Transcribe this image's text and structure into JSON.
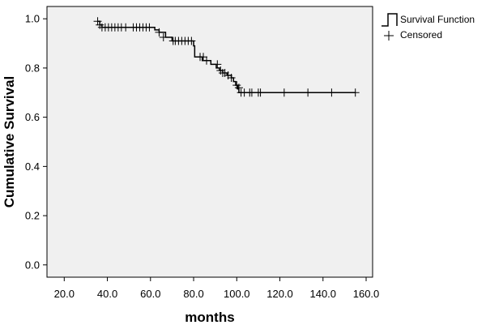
{
  "chart_data": {
    "type": "line",
    "subtype": "kaplan-meier-survival",
    "title": "",
    "xlabel": "months",
    "ylabel": "Cumulative Survival",
    "xlim": [
      12.0,
      163.0
    ],
    "ylim": [
      -0.05,
      1.05
    ],
    "x_ticks": [
      20.0,
      40.0,
      60.0,
      80.0,
      100.0,
      120.0,
      140.0,
      160.0
    ],
    "x_tick_labels": [
      "20.0",
      "40.0",
      "60.0",
      "80.0",
      "100.0",
      "120.0",
      "140.0",
      "160.0"
    ],
    "y_ticks": [
      0.0,
      0.2,
      0.4,
      0.6,
      0.8,
      1.0
    ],
    "y_tick_labels": [
      "0.0",
      "0.2",
      "0.4",
      "0.6",
      "0.8",
      "1.0"
    ],
    "grid": false,
    "legend_position": "top-right outside plot",
    "legend": [
      "Survival Function",
      "Censored"
    ],
    "colors": {
      "plot_background": "#f0f0f0",
      "line": "#000000",
      "page_background": "#ffffff"
    },
    "series": [
      {
        "name": "Survival Function",
        "steps": [
          [
            35.5,
            0.99
          ],
          [
            36.5,
            0.975
          ],
          [
            37.5,
            0.965
          ],
          [
            62.0,
            0.955
          ],
          [
            64.0,
            0.945
          ],
          [
            67.0,
            0.925
          ],
          [
            70.0,
            0.91
          ],
          [
            80.0,
            0.89
          ],
          [
            80.5,
            0.845
          ],
          [
            84.0,
            0.83
          ],
          [
            88.0,
            0.815
          ],
          [
            90.5,
            0.8
          ],
          [
            92.0,
            0.79
          ],
          [
            93.5,
            0.78
          ],
          [
            95.5,
            0.77
          ],
          [
            97.5,
            0.76
          ],
          [
            98.5,
            0.745
          ],
          [
            99.5,
            0.73
          ],
          [
            100.5,
            0.715
          ],
          [
            101.0,
            0.7
          ],
          [
            155.0,
            0.7
          ]
        ]
      },
      {
        "name": "Censored",
        "points": [
          [
            35.5,
            0.99
          ],
          [
            36.5,
            0.975
          ],
          [
            37.5,
            0.965
          ],
          [
            39.0,
            0.965
          ],
          [
            40.5,
            0.965
          ],
          [
            42.0,
            0.965
          ],
          [
            43.5,
            0.965
          ],
          [
            45.0,
            0.965
          ],
          [
            46.5,
            0.965
          ],
          [
            48.5,
            0.965
          ],
          [
            52.0,
            0.965
          ],
          [
            53.5,
            0.965
          ],
          [
            55.0,
            0.965
          ],
          [
            56.5,
            0.965
          ],
          [
            58.0,
            0.965
          ],
          [
            59.5,
            0.965
          ],
          [
            64.0,
            0.945
          ],
          [
            66.0,
            0.925
          ],
          [
            70.5,
            0.91
          ],
          [
            71.5,
            0.91
          ],
          [
            73.0,
            0.91
          ],
          [
            74.5,
            0.91
          ],
          [
            76.0,
            0.91
          ],
          [
            77.5,
            0.91
          ],
          [
            79.0,
            0.91
          ],
          [
            83.0,
            0.845
          ],
          [
            84.5,
            0.845
          ],
          [
            86.0,
            0.83
          ],
          [
            91.0,
            0.815
          ],
          [
            92.5,
            0.79
          ],
          [
            93.5,
            0.78
          ],
          [
            94.5,
            0.78
          ],
          [
            96.0,
            0.77
          ],
          [
            97.5,
            0.76
          ],
          [
            100.0,
            0.73
          ],
          [
            101.0,
            0.72
          ],
          [
            102.0,
            0.7
          ],
          [
            103.5,
            0.7
          ],
          [
            106.0,
            0.7
          ],
          [
            107.0,
            0.7
          ],
          [
            110.0,
            0.7
          ],
          [
            111.0,
            0.7
          ],
          [
            122.0,
            0.7
          ],
          [
            133.0,
            0.7
          ],
          [
            144.0,
            0.7
          ],
          [
            155.0,
            0.7
          ]
        ]
      }
    ]
  }
}
